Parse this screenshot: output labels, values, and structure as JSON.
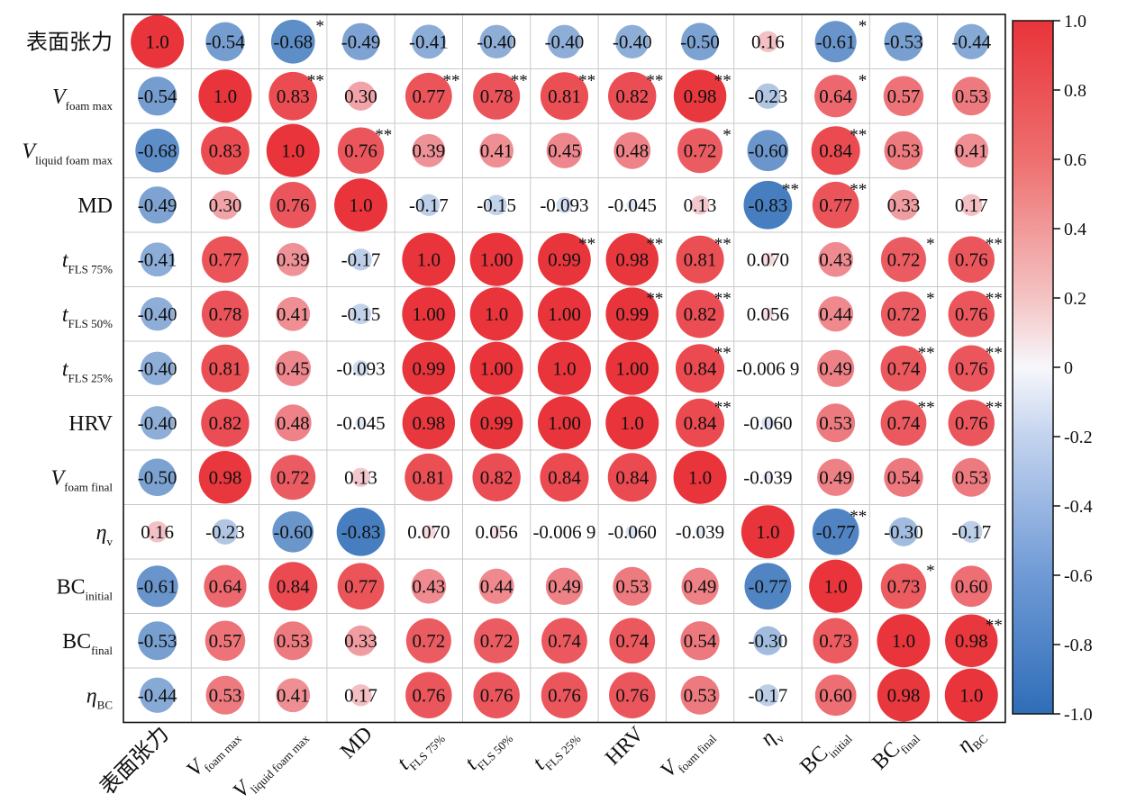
{
  "chart_data": {
    "type": "heatmap",
    "variables": [
      {
        "base": "表面张力",
        "sub": "",
        "italic": false
      },
      {
        "base": "V",
        "sub": "foam max",
        "italic": true
      },
      {
        "base": "V",
        "sub": "liquid foam max",
        "italic": true
      },
      {
        "base": "MD",
        "sub": "",
        "italic": false
      },
      {
        "base": "t",
        "sub": "FLS 75%",
        "italic": true
      },
      {
        "base": "t",
        "sub": "FLS 50%",
        "italic": true
      },
      {
        "base": "t",
        "sub": "FLS 25%",
        "italic": true
      },
      {
        "base": "HRV",
        "sub": "",
        "italic": false
      },
      {
        "base": "V",
        "sub": "foam final",
        "italic": true
      },
      {
        "base": "η",
        "sub": "v",
        "italic": true
      },
      {
        "base": "BC",
        "sub": "initial",
        "italic": false
      },
      {
        "base": "BC",
        "sub": "final",
        "italic": false
      },
      {
        "base": "η",
        "sub": "BC",
        "italic": true
      }
    ],
    "values": [
      [
        1.0,
        -0.54,
        -0.68,
        -0.49,
        -0.41,
        -0.4,
        -0.4,
        -0.4,
        -0.5,
        0.16,
        -0.61,
        -0.53,
        -0.44
      ],
      [
        -0.54,
        1.0,
        0.83,
        0.3,
        0.77,
        0.78,
        0.81,
        0.82,
        0.98,
        -0.23,
        0.64,
        0.57,
        0.53
      ],
      [
        -0.68,
        0.83,
        1.0,
        0.76,
        0.39,
        0.41,
        0.45,
        0.48,
        0.72,
        -0.6,
        0.84,
        0.53,
        0.41
      ],
      [
        -0.49,
        0.3,
        0.76,
        1.0,
        -0.17,
        -0.15,
        -0.093,
        -0.045,
        0.13,
        -0.83,
        0.77,
        0.33,
        0.17
      ],
      [
        -0.41,
        0.77,
        0.39,
        -0.17,
        1.0,
        1.0,
        0.99,
        0.98,
        0.81,
        0.07,
        0.43,
        0.72,
        0.76
      ],
      [
        -0.4,
        0.78,
        0.41,
        -0.15,
        1.0,
        1.0,
        1.0,
        0.99,
        0.82,
        0.056,
        0.44,
        0.72,
        0.76
      ],
      [
        -0.4,
        0.81,
        0.45,
        -0.093,
        0.99,
        1.0,
        1.0,
        1.0,
        0.84,
        -0.0069,
        0.49,
        0.74,
        0.76
      ],
      [
        -0.4,
        0.82,
        0.48,
        -0.045,
        0.98,
        0.99,
        1.0,
        1.0,
        0.84,
        -0.06,
        0.53,
        0.74,
        0.76
      ],
      [
        -0.5,
        0.98,
        0.72,
        0.13,
        0.81,
        0.82,
        0.84,
        0.84,
        1.0,
        -0.039,
        0.49,
        0.54,
        0.53
      ],
      [
        0.16,
        -0.23,
        -0.6,
        -0.83,
        0.07,
        0.056,
        -0.0069,
        -0.06,
        -0.039,
        1.0,
        -0.77,
        -0.3,
        -0.17
      ],
      [
        -0.61,
        0.64,
        0.84,
        0.77,
        0.43,
        0.44,
        0.49,
        0.53,
        0.49,
        -0.77,
        1.0,
        0.73,
        0.6
      ],
      [
        -0.53,
        0.57,
        0.53,
        0.33,
        0.72,
        0.72,
        0.74,
        0.74,
        0.54,
        -0.3,
        0.73,
        1.0,
        0.98
      ],
      [
        -0.44,
        0.53,
        0.41,
        0.17,
        0.76,
        0.76,
        0.76,
        0.76,
        0.53,
        -0.17,
        0.6,
        0.98,
        1.0
      ]
    ],
    "labels": [
      [
        "1.0",
        "-0.54",
        "-0.68",
        "-0.49",
        "-0.41",
        "-0.40",
        "-0.40",
        "-0.40",
        "-0.50",
        "0.16",
        "-0.61",
        "-0.53",
        "-0.44"
      ],
      [
        "-0.54",
        "1.0",
        "0.83",
        "0.30",
        "0.77",
        "0.78",
        "0.81",
        "0.82",
        "0.98",
        "-0.23",
        "0.64",
        "0.57",
        "0.53"
      ],
      [
        "-0.68",
        "0.83",
        "1.0",
        "0.76",
        "0.39",
        "0.41",
        "0.45",
        "0.48",
        "0.72",
        "-0.60",
        "0.84",
        "0.53",
        "0.41"
      ],
      [
        "-0.49",
        "0.30",
        "0.76",
        "1.0",
        "-0.17",
        "-0.15",
        "-0.093",
        "-0.045",
        "0.13",
        "-0.83",
        "0.77",
        "0.33",
        "0.17"
      ],
      [
        "-0.41",
        "0.77",
        "0.39",
        "-0.17",
        "1.0",
        "1.00",
        "0.99",
        "0.98",
        "0.81",
        "0.070",
        "0.43",
        "0.72",
        "0.76"
      ],
      [
        "-0.40",
        "0.78",
        "0.41",
        "-0.15",
        "1.00",
        "1.0",
        "1.00",
        "0.99",
        "0.82",
        "0.056",
        "0.44",
        "0.72",
        "0.76"
      ],
      [
        "-0.40",
        "0.81",
        "0.45",
        "-0.093",
        "0.99",
        "1.00",
        "1.0",
        "1.00",
        "0.84",
        "-0.006 9",
        "0.49",
        "0.74",
        "0.76"
      ],
      [
        "-0.40",
        "0.82",
        "0.48",
        "-0.045",
        "0.98",
        "0.99",
        "1.00",
        "1.0",
        "0.84",
        "-0.060",
        "0.53",
        "0.74",
        "0.76"
      ],
      [
        "-0.50",
        "0.98",
        "0.72",
        "0.13",
        "0.81",
        "0.82",
        "0.84",
        "0.84",
        "1.0",
        "-0.039",
        "0.49",
        "0.54",
        "0.53"
      ],
      [
        "0.16",
        "-0.23",
        "-0.60",
        "-0.83",
        "0.070",
        "0.056",
        "-0.006 9",
        "-0.060",
        "-0.039",
        "1.0",
        "-0.77",
        "-0.30",
        "-0.17"
      ],
      [
        "-0.61",
        "0.64",
        "0.84",
        "0.77",
        "0.43",
        "0.44",
        "0.49",
        "0.53",
        "0.49",
        "-0.77",
        "1.0",
        "0.73",
        "0.60"
      ],
      [
        "-0.53",
        "0.57",
        "0.53",
        "0.33",
        "0.72",
        "0.72",
        "0.74",
        "0.74",
        "0.54",
        "-0.30",
        "0.73",
        "1.0",
        "0.98"
      ],
      [
        "-0.44",
        "0.53",
        "0.41",
        "0.17",
        "0.76",
        "0.76",
        "0.76",
        "0.76",
        "0.53",
        "-0.17",
        "0.60",
        "0.98",
        "1.0"
      ]
    ],
    "significance": [
      [
        "",
        "",
        "*",
        "",
        "",
        "",
        "",
        "",
        "",
        "",
        "*",
        "",
        ""
      ],
      [
        "",
        "",
        "**",
        "",
        "**",
        "**",
        "**",
        "**",
        "**",
        "",
        "*",
        "",
        ""
      ],
      [
        "",
        "",
        "",
        "**",
        "",
        "",
        "",
        "",
        "*",
        "",
        "**",
        "",
        ""
      ],
      [
        "",
        "",
        "",
        "",
        "",
        "",
        "",
        "",
        "",
        "**",
        "**",
        "",
        ""
      ],
      [
        "",
        "",
        "",
        "",
        "",
        "",
        "**",
        "**",
        "**",
        "",
        "",
        "*",
        "**"
      ],
      [
        "",
        "",
        "",
        "",
        "",
        "",
        "",
        "**",
        "**",
        "",
        "",
        "*",
        "**"
      ],
      [
        "",
        "",
        "",
        "",
        "",
        "",
        "",
        "",
        "**",
        "",
        "",
        "**",
        "**"
      ],
      [
        "",
        "",
        "",
        "",
        "",
        "",
        "",
        "",
        "**",
        "",
        "",
        "**",
        "**"
      ],
      [
        "",
        "",
        "",
        "",
        "",
        "",
        "",
        "",
        "",
        "",
        "",
        "",
        ""
      ],
      [
        "",
        "",
        "",
        "",
        "",
        "",
        "",
        "",
        "",
        "",
        "**",
        "",
        ""
      ],
      [
        "",
        "",
        "",
        "",
        "",
        "",
        "",
        "",
        "",
        "",
        "",
        "*",
        ""
      ],
      [
        "",
        "",
        "",
        "",
        "",
        "",
        "",
        "",
        "",
        "",
        "",
        "",
        "**"
      ],
      [
        "",
        "",
        "",
        "",
        "",
        "",
        "",
        "",
        "",
        "",
        "",
        "",
        ""
      ]
    ],
    "colorbar": {
      "ticks": [
        "1.0",
        "0.8",
        "0.6",
        "0.4",
        "0.2",
        "0",
        "-0.2",
        "-0.4",
        "-0.6",
        "-0.8",
        "-1.0"
      ],
      "range": [
        -1.0,
        1.0
      ],
      "colors": {
        "neg": "#2f6db8",
        "mid": "#f7f7fb",
        "pos": "#e8343a"
      }
    },
    "size_encoding": "circle area proportional to |r|",
    "title": "",
    "xlabel": "",
    "ylabel": ""
  }
}
